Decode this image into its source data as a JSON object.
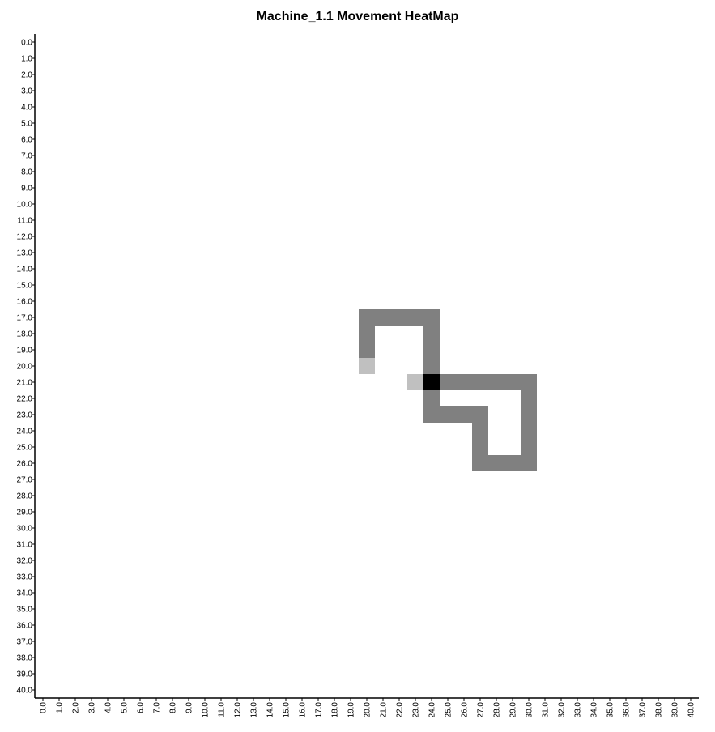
{
  "chart_data": {
    "type": "heatmap",
    "title": "Machine_1.1 Movement HeatMap",
    "xlabel": "",
    "ylabel": "",
    "x_ticks": [
      "0.0",
      "1.0",
      "2.0",
      "3.0",
      "4.0",
      "5.0",
      "6.0",
      "7.0",
      "8.0",
      "9.0",
      "10.0",
      "11.0",
      "12.0",
      "13.0",
      "14.0",
      "15.0",
      "16.0",
      "17.0",
      "18.0",
      "19.0",
      "20.0",
      "21.0",
      "22.0",
      "23.0",
      "24.0",
      "25.0",
      "26.0",
      "27.0",
      "28.0",
      "29.0",
      "30.0",
      "31.0",
      "32.0",
      "33.0",
      "34.0",
      "35.0",
      "36.0",
      "37.0",
      "38.0",
      "39.0",
      "40.0"
    ],
    "y_ticks": [
      "0.0",
      "1.0",
      "2.0",
      "3.0",
      "4.0",
      "5.0",
      "6.0",
      "7.0",
      "8.0",
      "9.0",
      "10.0",
      "11.0",
      "12.0",
      "13.0",
      "14.0",
      "15.0",
      "16.0",
      "17.0",
      "18.0",
      "19.0",
      "20.0",
      "21.0",
      "22.0",
      "23.0",
      "24.0",
      "25.0",
      "26.0",
      "27.0",
      "28.0",
      "29.0",
      "30.0",
      "31.0",
      "32.0",
      "33.0",
      "34.0",
      "35.0",
      "36.0",
      "37.0",
      "38.0",
      "39.0",
      "40.0"
    ],
    "xlim": [
      0,
      40
    ],
    "ylim": [
      0,
      40
    ],
    "y_inverted": true,
    "grid": false,
    "legend": "none",
    "colors": {
      "low": "#c0c0c0",
      "mid": "#808080",
      "high": "#000000"
    },
    "cells": [
      {
        "x": 20,
        "y": 17,
        "value": 2
      },
      {
        "x": 21,
        "y": 17,
        "value": 2
      },
      {
        "x": 22,
        "y": 17,
        "value": 2
      },
      {
        "x": 23,
        "y": 17,
        "value": 2
      },
      {
        "x": 24,
        "y": 17,
        "value": 2
      },
      {
        "x": 20,
        "y": 18,
        "value": 2
      },
      {
        "x": 24,
        "y": 18,
        "value": 2
      },
      {
        "x": 20,
        "y": 19,
        "value": 2
      },
      {
        "x": 24,
        "y": 19,
        "value": 2
      },
      {
        "x": 20,
        "y": 20,
        "value": 1
      },
      {
        "x": 24,
        "y": 20,
        "value": 2
      },
      {
        "x": 23,
        "y": 21,
        "value": 1
      },
      {
        "x": 24,
        "y": 21,
        "value": 3
      },
      {
        "x": 25,
        "y": 21,
        "value": 2
      },
      {
        "x": 26,
        "y": 21,
        "value": 2
      },
      {
        "x": 27,
        "y": 21,
        "value": 2
      },
      {
        "x": 28,
        "y": 21,
        "value": 2
      },
      {
        "x": 29,
        "y": 21,
        "value": 2
      },
      {
        "x": 30,
        "y": 21,
        "value": 2
      },
      {
        "x": 24,
        "y": 22,
        "value": 2
      },
      {
        "x": 30,
        "y": 22,
        "value": 2
      },
      {
        "x": 24,
        "y": 23,
        "value": 2
      },
      {
        "x": 25,
        "y": 23,
        "value": 2
      },
      {
        "x": 26,
        "y": 23,
        "value": 2
      },
      {
        "x": 27,
        "y": 23,
        "value": 2
      },
      {
        "x": 30,
        "y": 23,
        "value": 2
      },
      {
        "x": 27,
        "y": 24,
        "value": 2
      },
      {
        "x": 30,
        "y": 24,
        "value": 2
      },
      {
        "x": 27,
        "y": 25,
        "value": 2
      },
      {
        "x": 30,
        "y": 25,
        "value": 2
      },
      {
        "x": 27,
        "y": 26,
        "value": 2
      },
      {
        "x": 28,
        "y": 26,
        "value": 2
      },
      {
        "x": 29,
        "y": 26,
        "value": 2
      },
      {
        "x": 30,
        "y": 26,
        "value": 2
      }
    ]
  }
}
